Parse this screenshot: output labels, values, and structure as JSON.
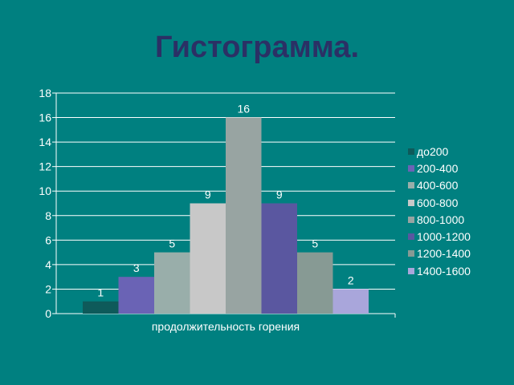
{
  "slide": {
    "title": "Гистограмма."
  },
  "chart_data": {
    "type": "bar",
    "title": "",
    "xlabel": "продолжительность горения",
    "ylabel": "",
    "ylim": [
      0,
      18
    ],
    "yticks": [
      0,
      2,
      4,
      6,
      8,
      10,
      12,
      14,
      16,
      18
    ],
    "grid": true,
    "legend_position": "right",
    "series": [
      {
        "name": "до200",
        "value": 1,
        "color": "#0e5a5a"
      },
      {
        "name": "200-400",
        "value": 3,
        "color": "#6a63b5"
      },
      {
        "name": "400-600",
        "value": 5,
        "color": "#99aeaa"
      },
      {
        "name": "600-800",
        "value": 9,
        "color": "#c8c8c8"
      },
      {
        "name": "800-1000",
        "value": 16,
        "color": "#98a4a2"
      },
      {
        "name": "1000-1200",
        "value": 9,
        "color": "#5a57a0"
      },
      {
        "name": "1200-1400",
        "value": 5,
        "color": "#879a94"
      },
      {
        "name": "1400-1600",
        "value": 2,
        "color": "#a9a6db"
      }
    ]
  }
}
